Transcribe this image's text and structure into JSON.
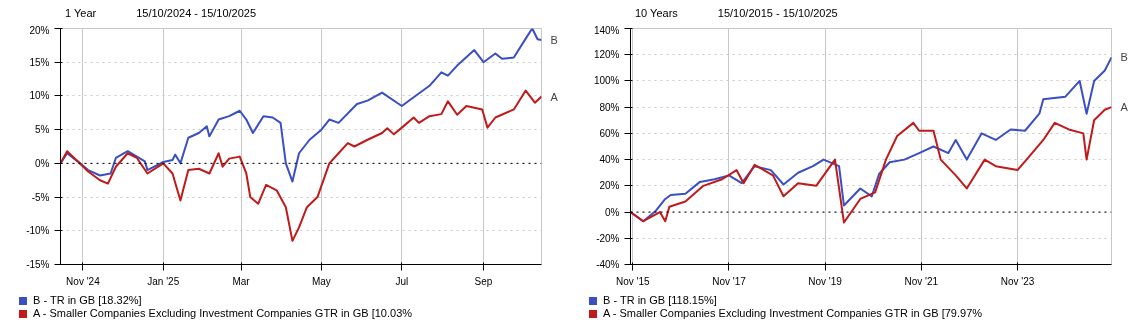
{
  "chart_data": [
    {
      "type": "line",
      "title": "1 Year",
      "subtitle": "15/10/2024 - 15/10/2025",
      "xlim": [
        "2024-10-15",
        "2025-10-15"
      ],
      "xticks": [
        {
          "value": "2024-11-01",
          "label": "Nov '24"
        },
        {
          "value": "2025-01-01",
          "label": "Jan '25"
        },
        {
          "value": "2025-03-01",
          "label": "Mar"
        },
        {
          "value": "2025-05-01",
          "label": "May"
        },
        {
          "value": "2025-07-01",
          "label": "Jul"
        },
        {
          "value": "2025-09-01",
          "label": "Sep"
        }
      ],
      "ylim": [
        -15,
        20
      ],
      "yticks": [
        {
          "value": -15,
          "label": "-15%"
        },
        {
          "value": -10,
          "label": "-10%"
        },
        {
          "value": -5,
          "label": "-5%"
        },
        {
          "value": 0,
          "label": "0%"
        },
        {
          "value": 5,
          "label": "5%"
        },
        {
          "value": 10,
          "label": "10%"
        },
        {
          "value": 15,
          "label": "15%"
        },
        {
          "value": 20,
          "label": "20%"
        }
      ],
      "grid": true,
      "legend": "bottom",
      "ref_lines": [
        {
          "axis": "y",
          "value": 0,
          "color": "#000000",
          "line_style": "dotted"
        }
      ],
      "annotations": [
        {
          "text": "B",
          "x": "2025-10-15",
          "y": 18.3
        },
        {
          "text": "A",
          "x": "2025-10-15",
          "y": 9.9
        }
      ],
      "series": [
        {
          "name": "B - TR in GB [18.32%]",
          "color": "#3a4fc2",
          "x": [
            "2024-10-15",
            "2024-10-20",
            "2024-10-28",
            "2024-11-05",
            "2024-11-14",
            "2024-11-22",
            "2024-11-26",
            "2024-12-05",
            "2024-12-12",
            "2024-12-18",
            "2024-12-20",
            "2025-01-01",
            "2025-01-08",
            "2025-01-10",
            "2025-01-14",
            "2025-01-20",
            "2025-01-28",
            "2025-02-03",
            "2025-02-05",
            "2025-02-12",
            "2025-02-20",
            "2025-02-28",
            "2025-03-05",
            "2025-03-10",
            "2025-03-18",
            "2025-03-25",
            "2025-03-31",
            "2025-04-04",
            "2025-04-09",
            "2025-04-14",
            "2025-04-22",
            "2025-05-01",
            "2025-05-07",
            "2025-05-14",
            "2025-05-28",
            "2025-06-05",
            "2025-06-16",
            "2025-07-01",
            "2025-07-10",
            "2025-07-22",
            "2025-07-31",
            "2025-08-05",
            "2025-08-12",
            "2025-08-25",
            "2025-09-01",
            "2025-09-10",
            "2025-09-15",
            "2025-09-24",
            "2025-10-03",
            "2025-10-08",
            "2025-10-12",
            "2025-10-15"
          ],
          "values": [
            0,
            1.5,
            0.3,
            -1,
            -1.8,
            -1.5,
            0.8,
            1.8,
            1.0,
            0.3,
            -1,
            0.2,
            0.5,
            1.3,
            0,
            3.8,
            4.5,
            5.5,
            4.0,
            6.5,
            7.0,
            7.8,
            6.5,
            4.5,
            7.0,
            6.8,
            6.0,
            0,
            -2.7,
            1.5,
            3.5,
            5.0,
            6.5,
            6.0,
            8.8,
            9.3,
            10.5,
            8.5,
            9.8,
            11.5,
            13.5,
            13.0,
            14.5,
            16.8,
            15.0,
            16.3,
            15.5,
            15.7,
            18.5,
            20.0,
            18.4,
            18.3
          ]
        },
        {
          "name": "A - Smaller Companies Excluding Investment Companies GTR in GB [10.03%",
          "color": "#c01a1a",
          "x": [
            "2024-10-15",
            "2024-10-20",
            "2024-10-28",
            "2024-11-05",
            "2024-11-14",
            "2024-11-20",
            "2024-11-26",
            "2024-12-05",
            "2024-12-12",
            "2024-12-20",
            "2025-01-01",
            "2025-01-08",
            "2025-01-14",
            "2025-01-20",
            "2025-01-28",
            "2025-02-05",
            "2025-02-12",
            "2025-02-15",
            "2025-02-20",
            "2025-02-28",
            "2025-03-05",
            "2025-03-08",
            "2025-03-14",
            "2025-03-20",
            "2025-03-28",
            "2025-04-04",
            "2025-04-09",
            "2025-04-14",
            "2025-04-20",
            "2025-04-28",
            "2025-05-07",
            "2025-05-14",
            "2025-05-21",
            "2025-05-26",
            "2025-06-05",
            "2025-06-16",
            "2025-06-20",
            "2025-06-25",
            "2025-07-01",
            "2025-07-10",
            "2025-07-14",
            "2025-07-22",
            "2025-07-31",
            "2025-08-05",
            "2025-08-12",
            "2025-08-19",
            "2025-08-31",
            "2025-09-04",
            "2025-09-10",
            "2025-09-24",
            "2025-10-03",
            "2025-10-10",
            "2025-10-15"
          ],
          "values": [
            0,
            1.8,
            0.3,
            -1.2,
            -2.5,
            -3.0,
            -0.5,
            1.5,
            0.8,
            -1.5,
            0,
            -1.5,
            -5.5,
            -1.0,
            -0.8,
            -1.5,
            1.5,
            -0.5,
            0.7,
            1.0,
            -1.5,
            -5.0,
            -6.0,
            -3.2,
            -4.0,
            -6.5,
            -11.5,
            -9.5,
            -6.5,
            -5.0,
            0,
            1.5,
            3.0,
            2.5,
            3.5,
            4.5,
            5.2,
            4.3,
            5.3,
            6.8,
            6.0,
            7.0,
            7.3,
            9.2,
            7.2,
            8.5,
            8.0,
            5.3,
            6.8,
            8.0,
            10.8,
            9.0,
            9.9
          ]
        }
      ]
    },
    {
      "type": "line",
      "title": "10 Years",
      "subtitle": "15/10/2015 - 15/10/2025",
      "xlim": [
        "2015-10-15",
        "2025-10-15"
      ],
      "xticks": [
        {
          "value": "2015-11-01",
          "label": "Nov '15"
        },
        {
          "value": "2017-11-01",
          "label": "Nov '17"
        },
        {
          "value": "2019-11-01",
          "label": "Nov '19"
        },
        {
          "value": "2021-11-01",
          "label": "Nov '21"
        },
        {
          "value": "2023-11-01",
          "label": "Nov '23"
        }
      ],
      "ylim": [
        -40,
        140
      ],
      "yticks": [
        {
          "value": -40,
          "label": "-40%"
        },
        {
          "value": -20,
          "label": "-20%"
        },
        {
          "value": 0,
          "label": "0%"
        },
        {
          "value": 20,
          "label": "20%"
        },
        {
          "value": 40,
          "label": "40%"
        },
        {
          "value": 60,
          "label": "60%"
        },
        {
          "value": 80,
          "label": "80%"
        },
        {
          "value": 100,
          "label": "100%"
        },
        {
          "value": 120,
          "label": "120%"
        },
        {
          "value": 140,
          "label": "140%"
        }
      ],
      "grid": true,
      "legend": "bottom",
      "ref_lines": [
        {
          "axis": "y",
          "value": 0,
          "color": "#000000",
          "line_style": "dotted"
        }
      ],
      "annotations": [
        {
          "text": "B",
          "x": "2025-10-15",
          "y": 118
        },
        {
          "text": "A",
          "x": "2025-10-15",
          "y": 80
        }
      ],
      "series": [
        {
          "name": "B - TR in GB [118.15%]",
          "color": "#3a4fc2",
          "x": [
            "2015-10-15",
            "2016-01-20",
            "2016-04-25",
            "2016-07-05",
            "2016-08-15",
            "2016-12-05",
            "2017-03-25",
            "2017-07-15",
            "2017-11-01",
            "2018-02-05",
            "2018-05-15",
            "2018-09-15",
            "2018-12-20",
            "2019-04-10",
            "2019-08-01",
            "2019-10-20",
            "2020-02-15",
            "2020-03-23",
            "2020-07-25",
            "2020-10-20",
            "2020-12-15",
            "2021-03-05",
            "2021-06-25",
            "2021-10-15",
            "2022-02-01",
            "2022-05-25",
            "2022-07-20",
            "2022-10-12",
            "2023-02-01",
            "2023-05-20",
            "2023-09-10",
            "2023-12-28",
            "2024-04-15",
            "2024-05-15",
            "2024-10-30",
            "2025-02-15",
            "2025-04-09",
            "2025-06-05",
            "2025-08-25",
            "2025-10-15"
          ],
          "values": [
            0,
            -7,
            1,
            10,
            13,
            14,
            23,
            25,
            28,
            22,
            35,
            32,
            21,
            30,
            35,
            40,
            35,
            5,
            18,
            12,
            29,
            38,
            40,
            45,
            50,
            45,
            55,
            40,
            60,
            55,
            63,
            62,
            75,
            86,
            88,
            100,
            75,
            100,
            108,
            118
          ]
        },
        {
          "name": "A - Smaller Companies Excluding Investment Companies GTR in GB [79.97%",
          "color": "#c01a1a",
          "x": [
            "2015-10-15",
            "2016-01-20",
            "2016-05-25",
            "2016-07-05",
            "2016-08-05",
            "2016-12-05",
            "2017-04-20",
            "2017-09-10",
            "2017-12-28",
            "2018-02-20",
            "2018-05-15",
            "2018-10-01",
            "2018-12-20",
            "2019-04-10",
            "2019-08-25",
            "2020-01-15",
            "2020-03-23",
            "2020-07-25",
            "2020-11-15",
            "2021-02-05",
            "2021-05-01",
            "2021-09-01",
            "2021-10-15",
            "2022-02-01",
            "2022-03-28",
            "2022-07-20",
            "2022-10-12",
            "2023-02-25",
            "2023-05-20",
            "2023-11-01",
            "2024-02-20",
            "2024-05-15",
            "2024-08-10",
            "2024-11-25",
            "2025-03-15",
            "2025-04-09",
            "2025-06-05",
            "2025-08-25",
            "2025-10-15"
          ],
          "values": [
            0,
            -7,
            0,
            -7,
            4,
            8,
            20,
            25,
            32,
            22,
            36,
            28,
            12,
            22,
            20,
            40,
            -8,
            10,
            15,
            40,
            58,
            68,
            62,
            62,
            40,
            28,
            18,
            40,
            35,
            32,
            45,
            55,
            68,
            63,
            60,
            40,
            70,
            78,
            80
          ]
        }
      ]
    }
  ]
}
